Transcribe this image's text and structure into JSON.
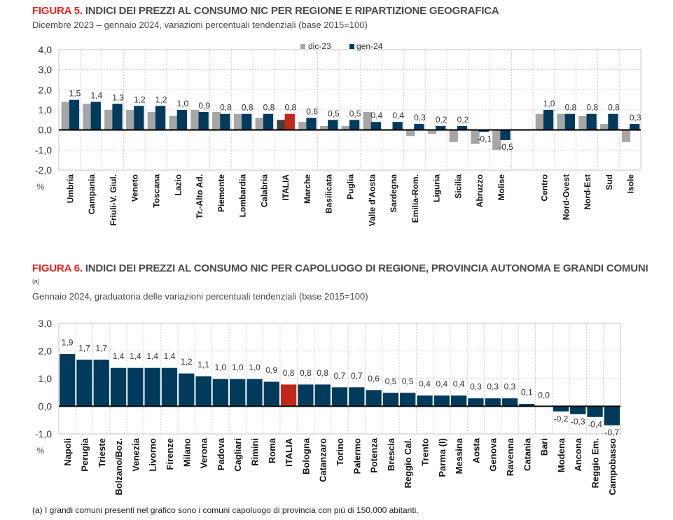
{
  "figure5": {
    "label": "FIGURA 5.",
    "title": "INDICI DEI PREZZI AL CONSUMO NIC PER REGIONE E RIPARTIZIONE GEOGRAFICA",
    "subtitle": "Dicembre 2023 – gennaio 2024, variazioni percentuali tendenziali (base 2015=100)"
  },
  "figure6": {
    "label": "FIGURA 6.",
    "title": "INDICI DEI PREZZI AL CONSUMO NIC PER CAPOLUOGO DI REGIONE, PROVINCIA AUTONOMA E GRANDI COMUNI",
    "title_note": "(a)",
    "subtitle": "Gennaio 2024, graduatoria delle variazioni percentuali tendenziali (base 2015=100)"
  },
  "footnote": "(a)  I grandi comuni presenti nel grafico sono i comuni capoluogo di provincia con più di 150.000 abitanti.",
  "colors": {
    "dic23": "#a6a6a6",
    "gen24": "#003b5c",
    "italia_gen24": "#c0281b",
    "italia_dic23": "#404040",
    "grid": "#bfbfbf"
  },
  "chart_data": [
    {
      "id": "figure5",
      "type": "bar",
      "title": "INDICI DEI PREZZI AL CONSUMO NIC PER REGIONE E RIPARTIZIONE GEOGRAFICA",
      "ylabel": "%",
      "ylim": [
        -2.0,
        4.0
      ],
      "yticks": [
        "4,0",
        "3,0",
        "2,0",
        "1,0",
        "0,0",
        "-1,0",
        "-2,0"
      ],
      "ytick_values": [
        4,
        3,
        2,
        1,
        0,
        -1,
        -2
      ],
      "grid": true,
      "legend_position": "top-center",
      "categories": [
        "Umbria",
        "Campania",
        "Friuli-V. Giul.",
        "Veneto",
        "Toscana",
        "Lazio",
        "Tr.-Alto Ad.",
        "Piemonte",
        "Lombardia",
        "Calabria",
        "ITALIA",
        "Marche",
        "Basilicata",
        "Puglia",
        "Valle d'Aosta",
        "Sardegna",
        "Emilia-Rom.",
        "Liguria",
        "Sicilia",
        "Abruzzo",
        "Molise",
        "",
        "Centro",
        "Nord-Ovest",
        "Nord-Est",
        "Sud",
        "Isole"
      ],
      "highlight": "ITALIA",
      "series": [
        {
          "name": "dic-23",
          "values": [
            1.4,
            1.3,
            1.0,
            1.0,
            0.9,
            0.7,
            1.0,
            0.9,
            0.8,
            0.6,
            0.5,
            0.4,
            0.2,
            0.2,
            0.9,
            0.0,
            -0.3,
            -0.2,
            -0.6,
            -0.7,
            -1.0,
            null,
            0.8,
            0.8,
            0.7,
            0.3,
            -0.6
          ]
        },
        {
          "name": "gen-24",
          "values": [
            1.5,
            1.4,
            1.3,
            1.2,
            1.2,
            1.0,
            0.9,
            0.8,
            0.8,
            0.8,
            0.8,
            0.6,
            0.5,
            0.5,
            0.4,
            0.4,
            0.3,
            0.2,
            0.2,
            -0.1,
            -0.5,
            null,
            1.0,
            0.8,
            0.8,
            0.8,
            0.3
          ],
          "labels": [
            "1,5",
            "1,4",
            "1,3",
            "1,2",
            "1,2",
            "1,0",
            "0,9",
            "0,8",
            "0,8",
            "0,8",
            "0,8",
            "0,6",
            "0,5",
            "0,5",
            "0,4",
            "0,4",
            "0,3",
            "0,2",
            "0,2",
            "-0,1",
            "-0,5",
            "",
            "1,0",
            "0,8",
            "0,8",
            "0,8",
            "0,3"
          ]
        }
      ]
    },
    {
      "id": "figure6",
      "type": "bar",
      "title": "INDICI DEI PREZZI AL CONSUMO NIC PER CAPOLUOGO DI REGIONE, PROVINCIA AUTONOMA E GRANDI COMUNI",
      "ylabel": "%",
      "ylim": [
        -1.0,
        3.0
      ],
      "yticks": [
        "3,0",
        "2,0",
        "1,0",
        "0,0",
        "-1,0"
      ],
      "ytick_values": [
        3,
        2,
        1,
        0,
        -1
      ],
      "grid": true,
      "legend_position": "none",
      "categories": [
        "Napoli",
        "Perugia",
        "Trieste",
        "Bolzano/Boz.",
        "Venezia",
        "Livorno",
        "Firenze",
        "Milano",
        "Verona",
        "Padova",
        "Cagliari",
        "Rimini",
        "Roma",
        "ITALIA",
        "Bologna",
        "Catanzaro",
        "Torino",
        "Palermo",
        "Potenza",
        "Brescia",
        "Reggio Cal.",
        "Trento",
        "Parma (I)",
        "Messina",
        "Aosta",
        "Genova",
        "Ravenna",
        "Catania",
        "Bari",
        "Modena",
        "Ancona",
        "Reggio Em.",
        "Campobasso"
      ],
      "highlight": "ITALIA",
      "series": [
        {
          "name": "gen-24",
          "values": [
            1.9,
            1.7,
            1.7,
            1.4,
            1.4,
            1.4,
            1.4,
            1.2,
            1.1,
            1.0,
            1.0,
            1.0,
            0.9,
            0.8,
            0.8,
            0.8,
            0.7,
            0.7,
            0.6,
            0.5,
            0.5,
            0.4,
            0.4,
            0.4,
            0.3,
            0.3,
            0.3,
            0.1,
            0.0,
            -0.2,
            -0.3,
            -0.4,
            -0.7
          ],
          "labels": [
            "1,9",
            "1,7",
            "1,7",
            "1,4",
            "1,4",
            "1,4",
            "1,4",
            "1,2",
            "1,1",
            "1,0",
            "1,0",
            "1,0",
            "0,9",
            "0,8",
            "0,8",
            "0,8",
            "0,7",
            "0,7",
            "0,6",
            "0,5",
            "0,5",
            "0,4",
            "0,4",
            "0,4",
            "0,3",
            "0,3",
            "0,3",
            "0,1",
            "0,0",
            "-0,2",
            "-0,3",
            "-0,4",
            "-0,7"
          ]
        }
      ]
    }
  ]
}
